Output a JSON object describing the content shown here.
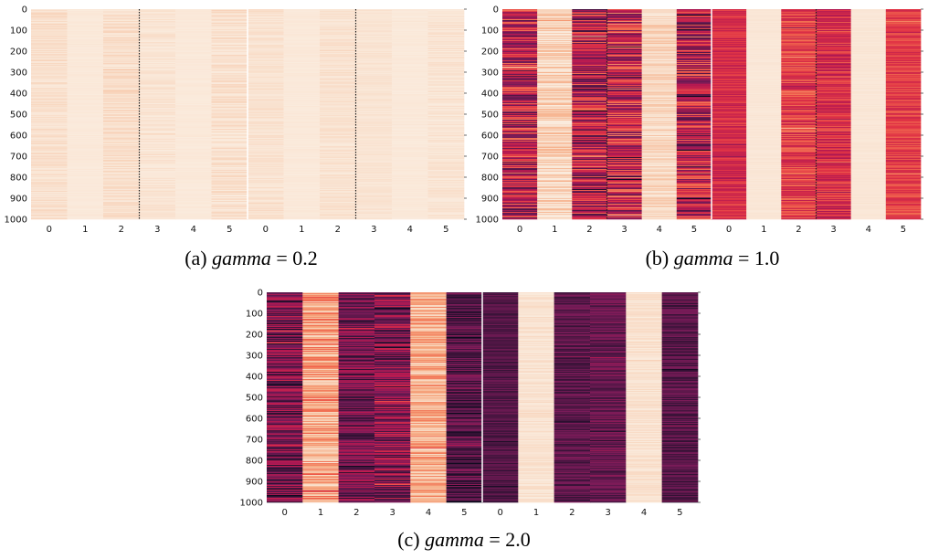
{
  "chart_data": [
    {
      "type": "heatmap",
      "id": "a",
      "caption": {
        "prefix": "(a) ",
        "var": "gamma",
        "suffix": " = 0.2"
      },
      "yticks": [
        "0",
        "100",
        "200",
        "300",
        "400",
        "500",
        "600",
        "700",
        "800",
        "900",
        "1000"
      ],
      "xticks": [
        "0",
        "1",
        "2",
        "3",
        "4",
        "5",
        "0",
        "1",
        "2",
        "3",
        "4",
        "5"
      ],
      "rows": 1000,
      "column_intensity": [
        0.05,
        0.01,
        0.06,
        0.03,
        0.01,
        0.05,
        0.04,
        0.01,
        0.04,
        0.03,
        0.01,
        0.03
      ],
      "column_variation": [
        0.04,
        0.01,
        0.05,
        0.03,
        0.01,
        0.05,
        0.03,
        0.01,
        0.03,
        0.02,
        0.01,
        0.03
      ],
      "white_separator_after_column": 6,
      "dotted_separators_after_columns": [
        3,
        9
      ]
    },
    {
      "type": "heatmap",
      "id": "b",
      "caption": {
        "prefix": "(b) ",
        "var": "gamma",
        "suffix": " = 1.0"
      },
      "yticks": [
        "0",
        "100",
        "200",
        "300",
        "400",
        "500",
        "600",
        "700",
        "800",
        "900",
        "1000"
      ],
      "xticks": [
        "0",
        "1",
        "2",
        "3",
        "4",
        "5",
        "0",
        "1",
        "2",
        "3",
        "4",
        "5"
      ],
      "rows": 1000,
      "column_intensity": [
        0.62,
        0.1,
        0.65,
        0.58,
        0.08,
        0.62,
        0.55,
        0.02,
        0.5,
        0.55,
        0.02,
        0.5
      ],
      "column_variation": [
        0.25,
        0.12,
        0.25,
        0.25,
        0.08,
        0.25,
        0.08,
        0.01,
        0.12,
        0.12,
        0.01,
        0.08
      ],
      "white_separator_after_column": 6,
      "dotted_separators_after_columns": [
        3,
        9
      ]
    },
    {
      "type": "heatmap",
      "id": "c",
      "caption": {
        "prefix": "(c) ",
        "var": "gamma",
        "suffix": " = 2.0"
      },
      "yticks": [
        "0",
        "100",
        "200",
        "300",
        "400",
        "500",
        "600",
        "700",
        "800",
        "900",
        "1000"
      ],
      "xticks": [
        "0",
        "1",
        "2",
        "3",
        "4",
        "5",
        "0",
        "1",
        "2",
        "3",
        "4",
        "5"
      ],
      "rows": 1000,
      "column_intensity": [
        0.78,
        0.25,
        0.8,
        0.75,
        0.22,
        0.85,
        0.86,
        0.04,
        0.84,
        0.82,
        0.04,
        0.85
      ],
      "column_variation": [
        0.18,
        0.18,
        0.15,
        0.18,
        0.15,
        0.12,
        0.06,
        0.04,
        0.08,
        0.08,
        0.04,
        0.08
      ],
      "white_separator_after_column": 6,
      "dotted_separators_after_columns": []
    }
  ],
  "colormap": "rocket_r"
}
